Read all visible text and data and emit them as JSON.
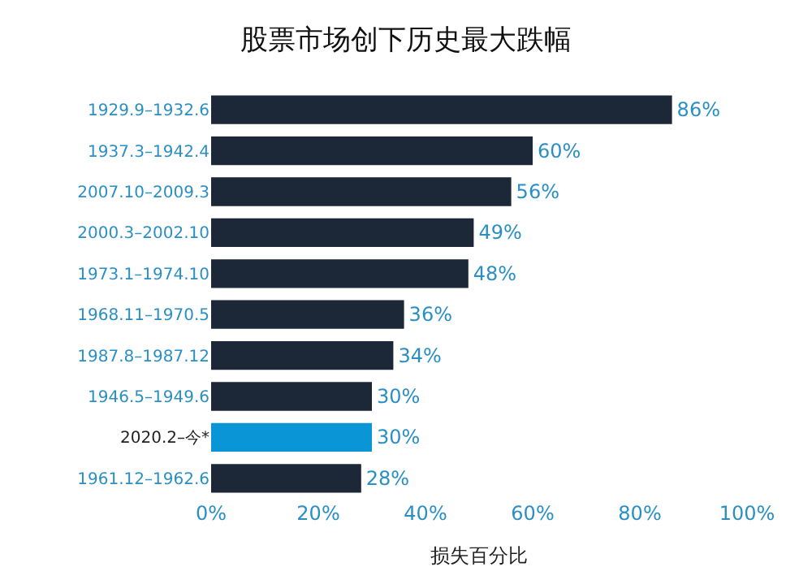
{
  "chart_data": {
    "type": "bar",
    "orientation": "horizontal",
    "title": "股票市场创下历史最大跌幅",
    "xlabel": "损失百分比",
    "categories": [
      "1929.9–1932.6",
      "1937.3–1942.4",
      "2007.10–2009.3",
      "2000.3–2002.10",
      "1973.1–1974.10",
      "1968.11–1970.5",
      "1987.8–1987.12",
      "1946.5–1949.6",
      "2020.2–今*",
      "1961.12–1962.6"
    ],
    "values": [
      86,
      60,
      56,
      49,
      48,
      36,
      34,
      30,
      30,
      28
    ],
    "value_labels": [
      "86%",
      "60%",
      "56%",
      "49%",
      "48%",
      "36%",
      "34%",
      "30%",
      "30%",
      "28%"
    ],
    "colors": [
      "#1c2838",
      "#1c2838",
      "#1c2838",
      "#1c2838",
      "#1c2838",
      "#1c2838",
      "#1c2838",
      "#1c2838",
      "#0a96d6",
      "#1c2838"
    ],
    "xlim": [
      0,
      100
    ],
    "xticks": [
      {
        "value": 0,
        "label": "0%"
      },
      {
        "value": 20,
        "label": "20%"
      },
      {
        "value": 40,
        "label": "40%"
      },
      {
        "value": 60,
        "label": "60%"
      },
      {
        "value": 80,
        "label": "80%"
      },
      {
        "value": 100,
        "label": "100%"
      }
    ]
  }
}
